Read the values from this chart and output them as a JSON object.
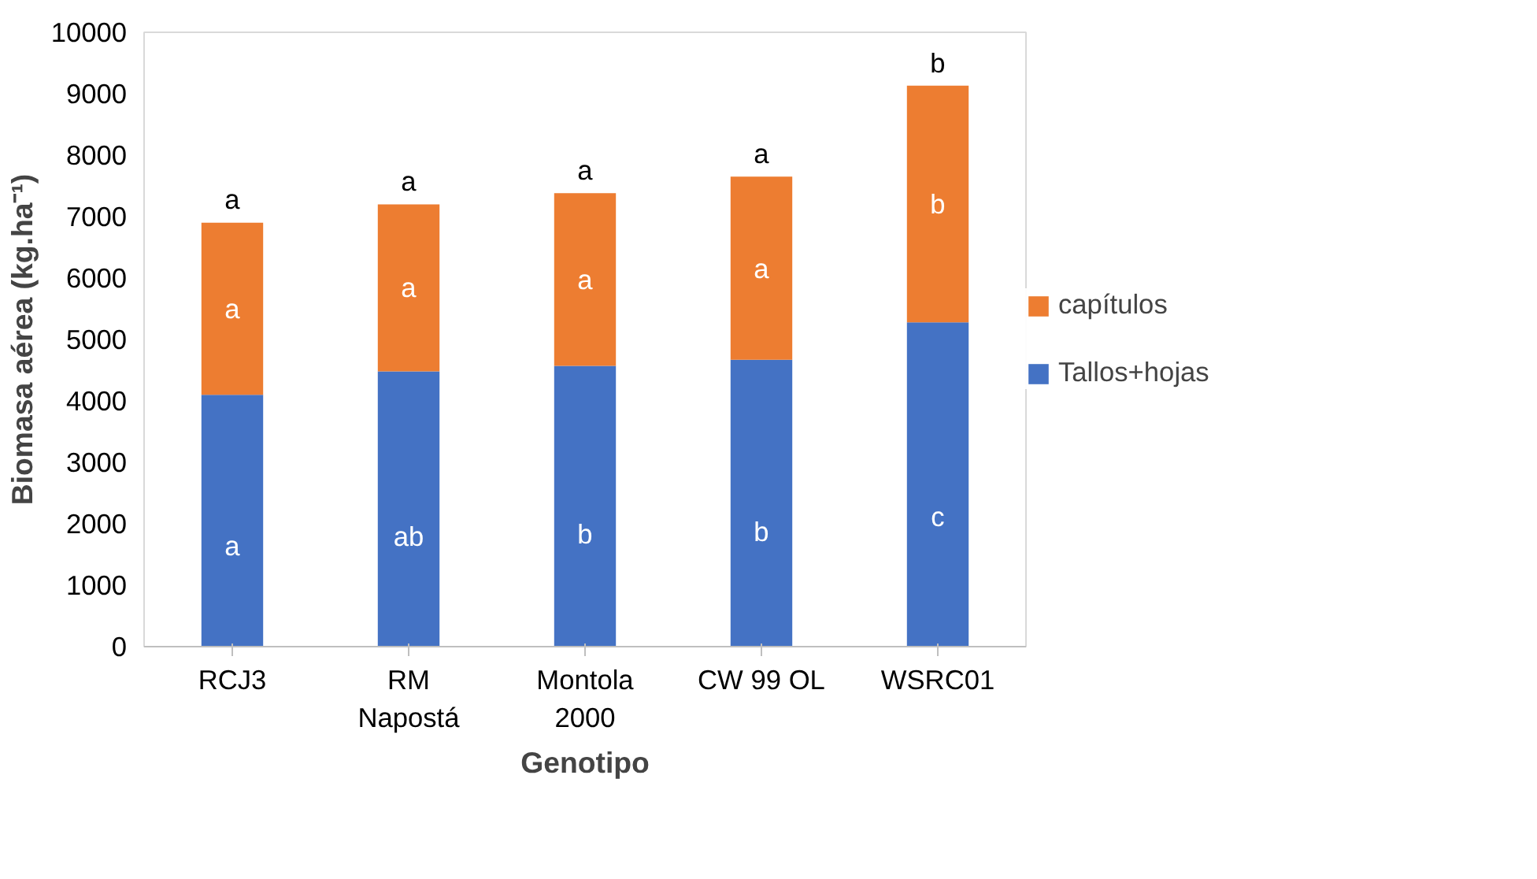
{
  "chart_data": {
    "type": "bar",
    "stacked": true,
    "xlabel": "Genotipo",
    "ylabel": "Biomasa aérea (kg.ha⁻¹)",
    "categories": [
      "RCJ3",
      "RM Napostá",
      "Montola 2000",
      "CW 99 OL",
      "WSRC01"
    ],
    "series": [
      {
        "name": "Tallos+hojas",
        "color": "#4472c4",
        "values": [
          4100,
          4480,
          4570,
          4670,
          5280
        ]
      },
      {
        "name": "capítulos",
        "color": "#ed7d31",
        "values": [
          2800,
          2720,
          2810,
          2980,
          3850
        ]
      }
    ],
    "ylim": [
      0,
      10000
    ],
    "yticks": [
      0,
      1000,
      2000,
      3000,
      4000,
      5000,
      6000,
      7000,
      8000,
      9000,
      10000
    ],
    "grid": false,
    "legend": "right",
    "annotations": [
      "a",
      "ab",
      "b",
      "b",
      "c",
      "a",
      "a",
      "a",
      "a",
      "b",
      "a",
      "a",
      "a",
      "a",
      "b"
    ]
  }
}
